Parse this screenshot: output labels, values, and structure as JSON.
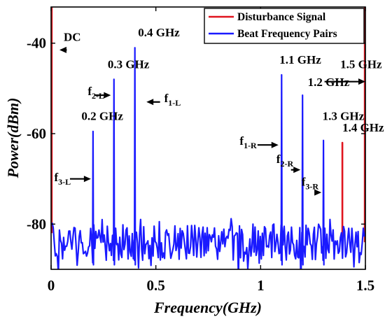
{
  "chart_data": {
    "type": "line",
    "xlabel": "Frequency(GHz)",
    "ylabel": "Power(dBm)",
    "xlim": [
      0,
      1.5
    ],
    "ylim": [
      -90,
      -32
    ],
    "xticks": [
      0,
      0.5,
      1,
      1.5
    ],
    "xtick_labels": [
      "0",
      "0.5",
      "1",
      "1.5"
    ],
    "yticks": [
      -80,
      -60,
      -40
    ],
    "ytick_labels": [
      "-80",
      "-60",
      "-40"
    ],
    "grid": false,
    "legend_position": "top-right",
    "colors": {
      "disturbance": "#e0141e",
      "beat": "#1a1aff"
    },
    "series": [
      {
        "name": "Disturbance Signal",
        "color": "#e0141e",
        "segments": [
          {
            "x": [
              0.003,
              0.003
            ],
            "y": [
              -32,
              -82
            ]
          },
          {
            "x": [
              1.39,
              1.39,
              1.39
            ],
            "y": [
              -85,
              -62,
              -85
            ]
          },
          {
            "x": [
              1.497,
              1.497
            ],
            "y": [
              -32,
              -84
            ]
          }
        ]
      },
      {
        "name": "Beat Frequency Pairs",
        "color": "#1a1aff",
        "peaks": [
          {
            "x": 0.2,
            "y": -59.5
          },
          {
            "x": 0.3,
            "y": -48
          },
          {
            "x": 0.4,
            "y": -41
          },
          {
            "x": 1.1,
            "y": -47
          },
          {
            "x": 1.2,
            "y": -51.5
          },
          {
            "x": 1.3,
            "y": -61.5
          }
        ],
        "noise_floor_dBm": -84
      }
    ],
    "annotations": [
      {
        "id": "dc",
        "text": "DC",
        "x": 0.06,
        "y": -39.5
      },
      {
        "id": "f02",
        "text": "0.2 GHz",
        "x": 0.145,
        "y": -57
      },
      {
        "id": "f03",
        "text": "0.3 GHz",
        "x": 0.27,
        "y": -45.5
      },
      {
        "id": "f04",
        "text": "0.4 GHz",
        "x": 0.415,
        "y": -38.5
      },
      {
        "id": "f11",
        "text": "1.1 GHz",
        "x": 1.09,
        "y": -44.5
      },
      {
        "id": "f12",
        "text": "1.2 GHz",
        "x": 1.225,
        "y": -49.5
      },
      {
        "id": "f13",
        "text": "1.3 GHz",
        "x": 1.295,
        "y": -57
      },
      {
        "id": "f14",
        "text": "1.4 GHz",
        "x": 1.39,
        "y": -59.5
      },
      {
        "id": "f15",
        "text": "1.5 GHz",
        "x": 1.38,
        "y": -45.5
      },
      {
        "id": "f2l",
        "text": "f",
        "sub": "2-L",
        "x": 0.175,
        "y": -51.5
      },
      {
        "id": "f1l",
        "text": "f",
        "sub": "1-L",
        "x": 0.54,
        "y": -53
      },
      {
        "id": "f3l",
        "text": "f",
        "sub": "3-L",
        "x": 0.015,
        "y": -70.5
      },
      {
        "id": "f1r",
        "text": "f",
        "sub": "1-R",
        "x": 0.9,
        "y": -62.5
      },
      {
        "id": "f2r",
        "text": "f",
        "sub": "2-R",
        "x": 1.075,
        "y": -66.5
      },
      {
        "id": "f3r",
        "text": "f",
        "sub": "3-R",
        "x": 1.195,
        "y": -71.5
      }
    ],
    "arrows": [
      {
        "id": "dc-arrow",
        "from": [
          0.075,
          -41.5
        ],
        "to": [
          0.04,
          -41.5
        ]
      },
      {
        "id": "f2l-arrow",
        "from": [
          0.21,
          -51.5
        ],
        "to": [
          0.285,
          -51.5
        ]
      },
      {
        "id": "f1l-arrow",
        "from": [
          0.52,
          -53
        ],
        "to": [
          0.455,
          -53
        ]
      },
      {
        "id": "f3l-arrow",
        "from": [
          0.09,
          -70
        ],
        "to": [
          0.19,
          -70
        ]
      },
      {
        "id": "f1r-arrow",
        "from": [
          0.985,
          -62.5
        ],
        "to": [
          1.085,
          -62.5
        ]
      },
      {
        "id": "f2r-arrow",
        "from": [
          1.145,
          -68
        ],
        "to": [
          1.19,
          -68
        ]
      },
      {
        "id": "f3r-arrow",
        "from": [
          1.26,
          -73
        ],
        "to": [
          1.29,
          -73
        ]
      },
      {
        "id": "f15-arrow",
        "from": [
          1.305,
          -48.5
        ],
        "to": [
          1.5,
          -48.5
        ]
      }
    ]
  }
}
